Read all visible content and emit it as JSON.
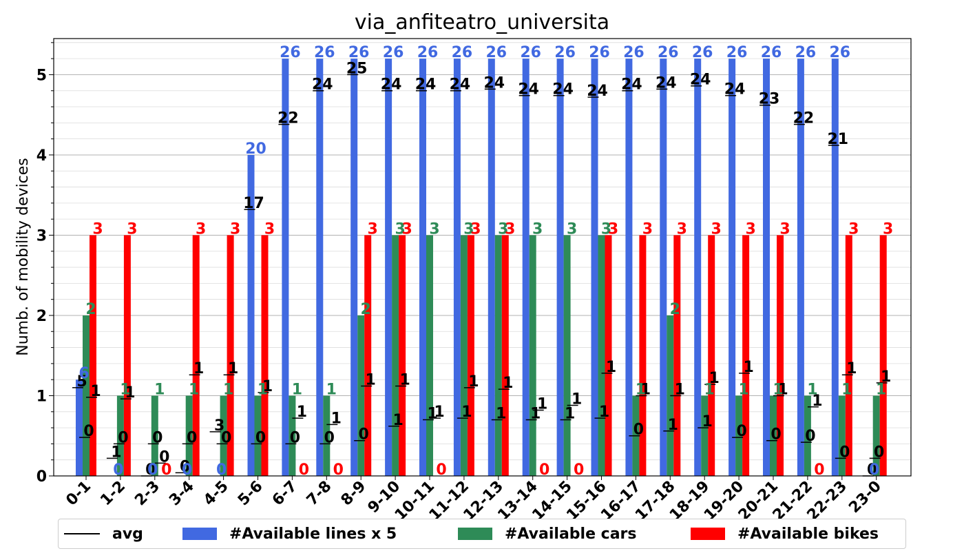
{
  "chart_data": {
    "type": "bar",
    "title": "via_anfiteatro_universita",
    "xlabel": "",
    "ylabel": "Numb. of mobility devices",
    "ylim": [
      0,
      5.45
    ],
    "yticks": [
      0,
      1,
      2,
      3,
      4,
      5
    ],
    "grid": true,
    "legend_position": "bottom",
    "categories": [
      "0-1",
      "1-2",
      "2-3",
      "3-4",
      "4-5",
      "5-6",
      "6-7",
      "7-8",
      "8-9",
      "9-10",
      "10-11",
      "11-12",
      "12-13",
      "13-14",
      "14-15",
      "15-16",
      "16-17",
      "17-18",
      "18-19",
      "19-20",
      "20-21",
      "21-22",
      "22-23",
      "23-0"
    ],
    "series": [
      {
        "name": "#Available lines x 5",
        "color": "#4169E1",
        "values": [
          1.2,
          0,
          0,
          0,
          0,
          4,
          5.2,
          5.2,
          5.2,
          5.2,
          5.2,
          5.2,
          5.2,
          5.2,
          5.2,
          5.2,
          5.2,
          5.2,
          5.2,
          5.2,
          5.2,
          5.2,
          5.2,
          0
        ],
        "labels": [
          "6",
          "0",
          "0",
          "0",
          "0",
          "20",
          "26",
          "26",
          "26",
          "26",
          "26",
          "26",
          "26",
          "26",
          "26",
          "26",
          "26",
          "26",
          "26",
          "26",
          "26",
          "26",
          "26",
          "0"
        ]
      },
      {
        "name": "#Available cars",
        "color": "#2E8B57",
        "values": [
          2,
          1,
          1,
          1,
          1,
          1,
          1,
          1,
          2,
          3,
          3,
          3,
          3,
          3,
          3,
          3,
          1,
          2,
          1,
          1,
          1,
          1,
          1,
          1
        ],
        "labels": [
          "2",
          "1",
          "1",
          "1",
          "1",
          "1",
          "1",
          "1",
          "2",
          "3",
          "3",
          "3",
          "3",
          "3",
          "3",
          "3",
          "1",
          "2",
          "1",
          "1",
          "1",
          "1",
          "1",
          "1"
        ]
      },
      {
        "name": "#Available bikes",
        "color": "#FF0000",
        "values": [
          3,
          3,
          0,
          3,
          3,
          3,
          0,
          0,
          3,
          3,
          0,
          3,
          3,
          0,
          0,
          3,
          3,
          3,
          3,
          3,
          3,
          0,
          3,
          3
        ],
        "labels": [
          "3",
          "3",
          "0",
          "3",
          "3",
          "3",
          "0",
          "0",
          "3",
          "3",
          "0",
          "3",
          "3",
          "0",
          "0",
          "3",
          "3",
          "3",
          "3",
          "3",
          "3",
          "0",
          "3",
          "3"
        ]
      }
    ],
    "avg": {
      "name": "avg",
      "color": "#000000",
      "lines": [
        1.1,
        0.22,
        0,
        0.04,
        0.55,
        3.32,
        4.38,
        4.8,
        5.0,
        4.8,
        4.8,
        4.8,
        4.82,
        4.74,
        4.74,
        4.72,
        4.8,
        4.82,
        4.86,
        4.74,
        4.62,
        4.38,
        4.12,
        0
      ],
      "lines_labels": [
        "5",
        "1",
        "0",
        "0",
        "3",
        "17",
        "22",
        "24",
        "25",
        "24",
        "24",
        "24",
        "24",
        "24",
        "24",
        "24",
        "24",
        "24",
        "24",
        "24",
        "23",
        "22",
        "21",
        "0"
      ],
      "cars": [
        0.48,
        0.4,
        0.4,
        0.4,
        0.4,
        0.4,
        0.4,
        0.4,
        0.44,
        0.62,
        0.7,
        0.72,
        0.7,
        0.7,
        0.7,
        0.72,
        0.5,
        0.56,
        0.6,
        0.48,
        0.44,
        0.42,
        0.22,
        0.22
      ],
      "cars_labels": [
        "0",
        "0",
        "0",
        "0",
        "0",
        "0",
        "0",
        "0",
        "0",
        "1",
        "1",
        "1",
        "1",
        "1",
        "1",
        "1",
        "0",
        "1",
        "1",
        "0",
        "0",
        "0",
        "0",
        "0"
      ],
      "bikes": [
        0.98,
        0.96,
        0.16,
        1.26,
        1.26,
        1.04,
        0.72,
        0.64,
        1.12,
        1.12,
        0.72,
        1.1,
        1.08,
        0.82,
        0.88,
        1.28,
        1.0,
        1.0,
        1.14,
        1.28,
        1.0,
        0.86,
        1.26,
        1.16
      ],
      "bikes_labels": [
        "1",
        "1",
        "0",
        "1",
        "1",
        "1",
        "1",
        "1",
        "1",
        "1",
        "1",
        "1",
        "1",
        "1",
        "1",
        "1",
        "1",
        "1",
        "1",
        "1",
        "1",
        "1",
        "1",
        "1"
      ]
    }
  }
}
